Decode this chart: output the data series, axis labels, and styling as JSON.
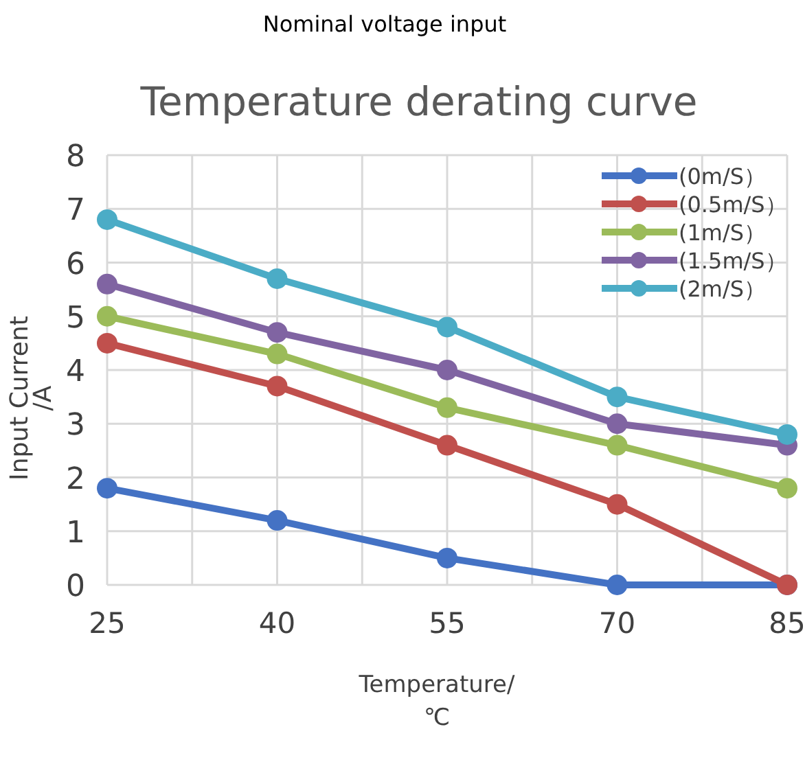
{
  "chart_data": {
    "type": "line",
    "title": "Temperature derating curve",
    "annotations": [
      "Nominal voltage input"
    ],
    "xlabel": "Temperature/\n℃",
    "ylabel": "Input Current\n/A",
    "x": [
      25,
      40,
      55,
      70,
      85
    ],
    "xlim": [
      25,
      85
    ],
    "xticks": [
      25,
      {
        "value": 32.5,
        "label": null
      },
      40,
      {
        "value": 47.5,
        "label": null
      },
      55,
      {
        "value": 62.5,
        "label": null
      },
      70,
      {
        "value": 77.5,
        "label": null
      },
      85
    ],
    "ylim": [
      0,
      8
    ],
    "yticks": [
      0,
      1,
      2,
      3,
      4,
      5,
      6,
      7,
      8
    ],
    "grid": true,
    "legend": "top right",
    "marker": "circle",
    "line_style": "solid",
    "series": [
      {
        "name": "(0m/S）",
        "color": "#4472c4",
        "values": [
          1.8,
          1.2,
          0.5,
          0,
          0
        ]
      },
      {
        "name": "(0.5m/S）",
        "color": "#c0504d",
        "values": [
          4.5,
          3.7,
          2.6,
          1.5,
          0
        ]
      },
      {
        "name": "(1m/S）",
        "color": "#9bbb59",
        "values": [
          5,
          4.3,
          3.3,
          2.6,
          1.8
        ]
      },
      {
        "name": "(1.5m/S）",
        "color": "#8064a2",
        "values": [
          5.6,
          4.7,
          4.0,
          3.0,
          2.6
        ]
      },
      {
        "name": "(2m/S）",
        "color": "#4bacc6",
        "values": [
          6.8,
          5.7,
          4.8,
          3.5,
          2.8
        ]
      }
    ]
  }
}
